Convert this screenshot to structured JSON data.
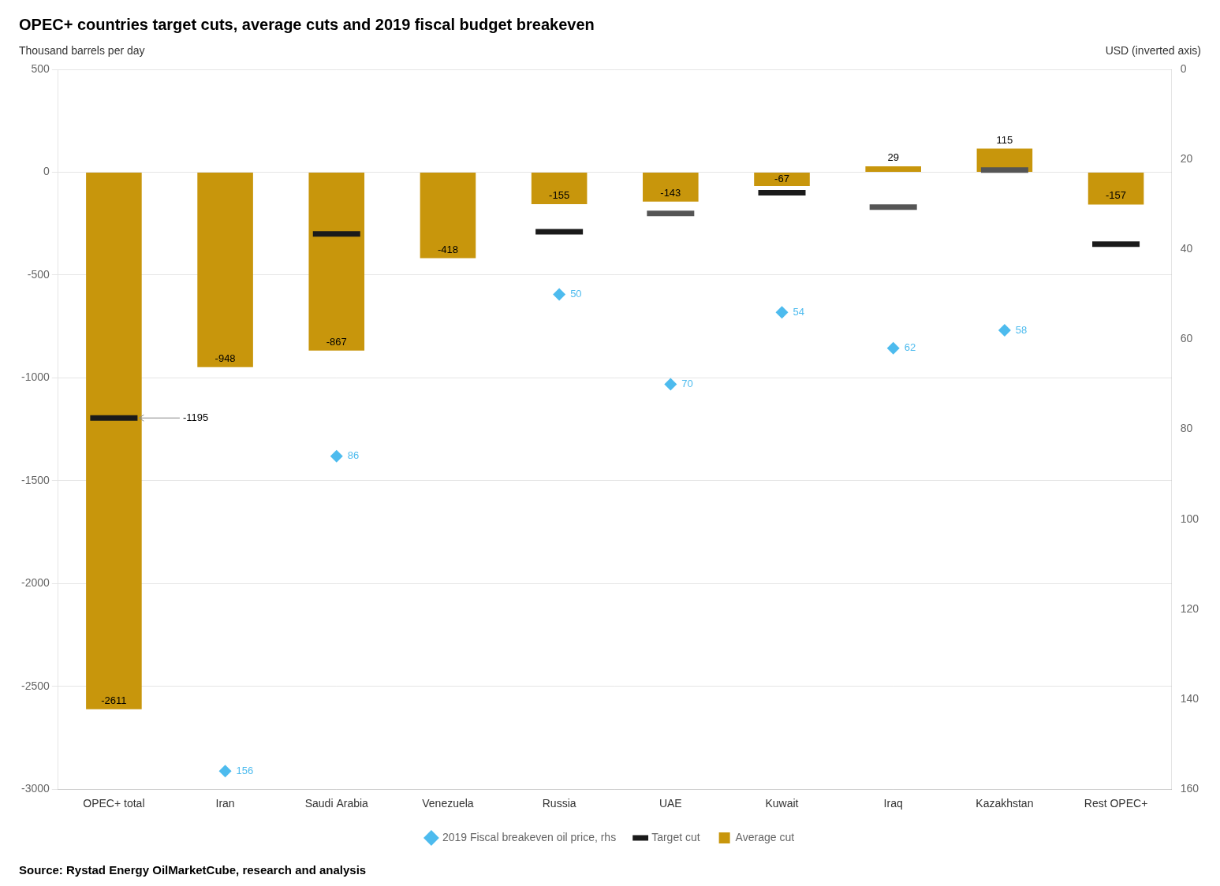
{
  "chart_data": {
    "type": "bar",
    "title": "OPEC+ countries target cuts, average cuts and 2019 fiscal budget breakeven",
    "ylabel": "Thousand barrels per day",
    "y2label": "USD (inverted axis)",
    "source": "Source: Rystad Energy OilMarketCube, research and analysis",
    "categories": [
      "OPEC+ total",
      "Iran",
      "Saudi Arabia",
      "Venezuela",
      "Russia",
      "UAE",
      "Kuwait",
      "Iraq",
      "Kazakhstan",
      "Rest OPEC+"
    ],
    "series": [
      {
        "name": "Average cut",
        "type": "bar",
        "color": "#C8960C",
        "values": [
          -2611,
          -948,
          -867,
          -418,
          -155,
          -143,
          -67,
          29,
          115,
          -157
        ],
        "data_labels": true
      },
      {
        "name": "Target cut",
        "type": "scatter",
        "marker": "hline",
        "values": [
          -1195,
          null,
          -300,
          null,
          -290,
          -200,
          -100,
          -170,
          10,
          -350
        ],
        "colors": [
          "#1a1a1a",
          null,
          "#1a1a1a",
          null,
          "#1a1a1a",
          "#555555",
          "#1a1a1a",
          "#555555",
          "#555555",
          "#1a1a1a"
        ]
      },
      {
        "name": "2019 Fiscal breakeven oil price, rhs",
        "type": "scatter",
        "marker": "diamond",
        "axis": "y2",
        "color": "#4DBBEE",
        "values": [
          null,
          156,
          86,
          null,
          50,
          70,
          54,
          62,
          58,
          null
        ],
        "data_labels": true
      }
    ],
    "annotations": [
      {
        "text": "-1195",
        "category": "OPEC+ total",
        "y": -1195
      }
    ],
    "ylim": [
      -3000,
      500
    ],
    "yticks": [
      500,
      0,
      -500,
      -1000,
      -1500,
      -2000,
      -2500,
      -3000
    ],
    "y2lim": [
      160,
      0
    ],
    "y2ticks": [
      0,
      20,
      40,
      60,
      80,
      100,
      120,
      140,
      160
    ],
    "grid": true,
    "legend": "bottom"
  }
}
